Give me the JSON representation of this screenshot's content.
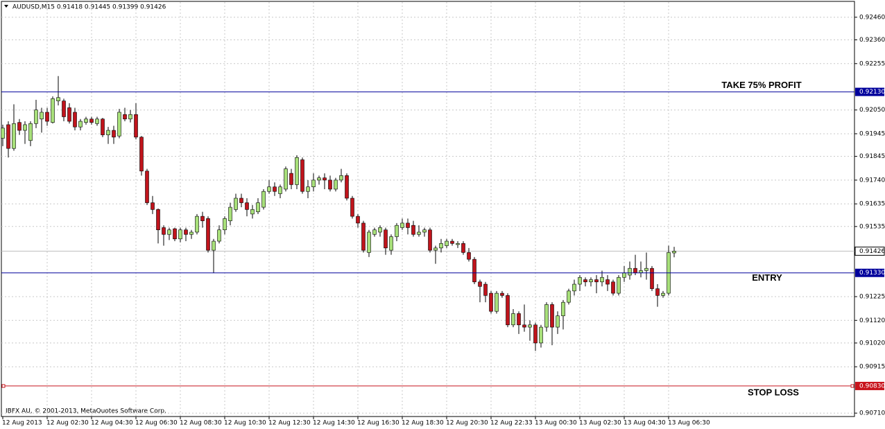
{
  "chart_data": {
    "type": "candlestick",
    "header": "AUDUSD,M15  0.91418 0.91445 0.91399 0.91426",
    "footer": "IBFX AU, © 2001-2013, MetaQuotes Software Corp.",
    "up_color": "#a8e07a",
    "down_color": "#c0141c",
    "grid": true,
    "ylim": [
      0.90695,
      0.92527
    ],
    "yticks": [
      {
        "value": 0.9246,
        "label": "0.92460"
      },
      {
        "value": 0.9236,
        "label": "0.92360"
      },
      0.92255,
      {
        "value": 0.9205,
        "label": "0.92050"
      },
      0.91945,
      0.91845,
      {
        "value": 0.9174,
        "label": "0.91740"
      },
      0.91635,
      0.91535,
      0.91225,
      {
        "value": 0.9112,
        "label": "0.91120"
      },
      {
        "value": 0.9102,
        "label": "0.91020"
      },
      0.90915,
      {
        "value": 0.9071,
        "label": "0.90710"
      }
    ],
    "levels": [
      {
        "value": 0.9213,
        "label": "0.92130",
        "name": "TAKE 75% PROFIT",
        "color": "#00009c"
      },
      {
        "value": 0.9133,
        "label": "0.91330",
        "name": "ENTRY",
        "color": "#00009c"
      },
      {
        "value": 0.9083,
        "label": "0.90830",
        "name": "STOP LOSS",
        "color": "#c8141c"
      }
    ],
    "bid": 0.91426,
    "categories": [
      "12 Aug 2013",
      null,
      null,
      null,
      null,
      null,
      null,
      null,
      "12 Aug 02:30",
      null,
      null,
      null,
      null,
      null,
      null,
      null,
      "12 Aug 04:30",
      null,
      null,
      null,
      null,
      null,
      null,
      null,
      "12 Aug 06:30",
      null,
      null,
      null,
      null,
      null,
      null,
      null,
      "12 Aug 08:30",
      null,
      null,
      null,
      null,
      null,
      null,
      null,
      "12 Aug 10:30",
      null,
      null,
      null,
      null,
      null,
      null,
      null,
      "12 Aug 12:30",
      null,
      null,
      null,
      null,
      null,
      null,
      null,
      "12 Aug 14:30",
      null,
      null,
      null,
      null,
      null,
      null,
      null,
      "12 Aug 16:30",
      null,
      null,
      null,
      null,
      null,
      null,
      null,
      "12 Aug 18:30",
      null,
      null,
      null,
      null,
      null,
      null,
      null,
      "12 Aug 20:30",
      null,
      null,
      null,
      null,
      null,
      null,
      null,
      "12 Aug 22:33",
      null,
      null,
      null,
      null,
      null,
      null,
      null,
      "13 Aug 00:30",
      null,
      null,
      null,
      null,
      null,
      null,
      null,
      "13 Aug 02:30",
      null,
      null,
      null,
      null,
      null,
      null,
      null,
      "13 Aug 04:30",
      null,
      null,
      null,
      null,
      null,
      null,
      null,
      "13 Aug 06:30",
      null
    ],
    "candles": [
      {
        "open": 0.91925,
        "high": 0.91985,
        "low": 0.9189,
        "close": 0.9197
      },
      {
        "open": 0.91985,
        "high": 0.92,
        "low": 0.9184,
        "close": 0.9188
      },
      {
        "open": 0.9188,
        "high": 0.92075,
        "low": 0.9187,
        "close": 0.9199
      },
      {
        "open": 0.91995,
        "high": 0.9201,
        "low": 0.9194,
        "close": 0.9196
      },
      {
        "open": 0.9196,
        "high": 0.92,
        "low": 0.919,
        "close": 0.91985
      },
      {
        "open": 0.91915,
        "high": 0.92,
        "low": 0.9189,
        "close": 0.9199
      },
      {
        "open": 0.9199,
        "high": 0.92095,
        "low": 0.9197,
        "close": 0.9205
      },
      {
        "open": 0.9201,
        "high": 0.9206,
        "low": 0.9195,
        "close": 0.9204
      },
      {
        "open": 0.9204,
        "high": 0.9206,
        "low": 0.9198,
        "close": 0.92
      },
      {
        "open": 0.91995,
        "high": 0.9211,
        "low": 0.9199,
        "close": 0.921
      },
      {
        "open": 0.9209,
        "high": 0.922,
        "low": 0.9207,
        "close": 0.92105
      },
      {
        "open": 0.9209,
        "high": 0.921,
        "low": 0.92,
        "close": 0.9202
      },
      {
        "open": 0.9206,
        "high": 0.9208,
        "low": 0.9199,
        "close": 0.92
      },
      {
        "open": 0.9204,
        "high": 0.9206,
        "low": 0.9196,
        "close": 0.91975
      },
      {
        "open": 0.91975,
        "high": 0.9201,
        "low": 0.9196,
        "close": 0.92
      },
      {
        "open": 0.91995,
        "high": 0.9202,
        "low": 0.91985,
        "close": 0.9201
      },
      {
        "open": 0.9201,
        "high": 0.9202,
        "low": 0.91985,
        "close": 0.91995
      },
      {
        "open": 0.9199,
        "high": 0.9202,
        "low": 0.9198,
        "close": 0.9201
      },
      {
        "open": 0.9201,
        "high": 0.92015,
        "low": 0.9193,
        "close": 0.9194
      },
      {
        "open": 0.9194,
        "high": 0.91975,
        "low": 0.919,
        "close": 0.9196
      },
      {
        "open": 0.9196,
        "high": 0.9198,
        "low": 0.919,
        "close": 0.9193
      },
      {
        "open": 0.91935,
        "high": 0.92055,
        "low": 0.91925,
        "close": 0.9204
      },
      {
        "open": 0.9203,
        "high": 0.9206,
        "low": 0.92,
        "close": 0.9201
      },
      {
        "open": 0.9201,
        "high": 0.9205,
        "low": 0.91995,
        "close": 0.9203
      },
      {
        "open": 0.9203,
        "high": 0.9208,
        "low": 0.9192,
        "close": 0.9193
      },
      {
        "open": 0.9193,
        "high": 0.91935,
        "low": 0.9176,
        "close": 0.9178
      },
      {
        "open": 0.9178,
        "high": 0.9179,
        "low": 0.9163,
        "close": 0.9164
      },
      {
        "open": 0.9164,
        "high": 0.9167,
        "low": 0.9159,
        "close": 0.9161
      },
      {
        "open": 0.9161,
        "high": 0.91615,
        "low": 0.9146,
        "close": 0.9152
      },
      {
        "open": 0.9153,
        "high": 0.9154,
        "low": 0.9145,
        "close": 0.915
      },
      {
        "open": 0.915,
        "high": 0.9153,
        "low": 0.91475,
        "close": 0.9152
      },
      {
        "open": 0.91525,
        "high": 0.9153,
        "low": 0.9147,
        "close": 0.9148
      },
      {
        "open": 0.9148,
        "high": 0.9153,
        "low": 0.91465,
        "close": 0.9152
      },
      {
        "open": 0.9152,
        "high": 0.9153,
        "low": 0.9147,
        "close": 0.915
      },
      {
        "open": 0.915,
        "high": 0.9152,
        "low": 0.9148,
        "close": 0.9151
      },
      {
        "open": 0.9151,
        "high": 0.9159,
        "low": 0.915,
        "close": 0.9158
      },
      {
        "open": 0.9158,
        "high": 0.916,
        "low": 0.9153,
        "close": 0.9156
      },
      {
        "open": 0.9157,
        "high": 0.9158,
        "low": 0.9142,
        "close": 0.9143
      },
      {
        "open": 0.9143,
        "high": 0.9148,
        "low": 0.9133,
        "close": 0.9147
      },
      {
        "open": 0.9147,
        "high": 0.9154,
        "low": 0.9146,
        "close": 0.9152
      },
      {
        "open": 0.9152,
        "high": 0.9158,
        "low": 0.915,
        "close": 0.9157
      },
      {
        "open": 0.9156,
        "high": 0.9164,
        "low": 0.9154,
        "close": 0.9162
      },
      {
        "open": 0.9161,
        "high": 0.9168,
        "low": 0.916,
        "close": 0.9166
      },
      {
        "open": 0.9166,
        "high": 0.9168,
        "low": 0.9162,
        "close": 0.9164
      },
      {
        "open": 0.9164,
        "high": 0.9166,
        "low": 0.9158,
        "close": 0.9161
      },
      {
        "open": 0.9159,
        "high": 0.9163,
        "low": 0.9157,
        "close": 0.9161
      },
      {
        "open": 0.916,
        "high": 0.9166,
        "low": 0.9159,
        "close": 0.9164
      },
      {
        "open": 0.9162,
        "high": 0.917,
        "low": 0.9161,
        "close": 0.9169
      },
      {
        "open": 0.9169,
        "high": 0.9174,
        "low": 0.9168,
        "close": 0.9171
      },
      {
        "open": 0.9171,
        "high": 0.9173,
        "low": 0.9167,
        "close": 0.9169
      },
      {
        "open": 0.9168,
        "high": 0.9172,
        "low": 0.9166,
        "close": 0.9171
      },
      {
        "open": 0.917,
        "high": 0.918,
        "low": 0.9169,
        "close": 0.9179
      },
      {
        "open": 0.9177,
        "high": 0.9179,
        "low": 0.917,
        "close": 0.9172
      },
      {
        "open": 0.9172,
        "high": 0.9185,
        "low": 0.917,
        "close": 0.9184
      },
      {
        "open": 0.9183,
        "high": 0.9184,
        "low": 0.9168,
        "close": 0.9169
      },
      {
        "open": 0.9169,
        "high": 0.9174,
        "low": 0.9166,
        "close": 0.9171
      },
      {
        "open": 0.9171,
        "high": 0.9177,
        "low": 0.9169,
        "close": 0.9174
      },
      {
        "open": 0.9174,
        "high": 0.9176,
        "low": 0.9172,
        "close": 0.9175
      },
      {
        "open": 0.9175,
        "high": 0.9177,
        "low": 0.917,
        "close": 0.9174
      },
      {
        "open": 0.9174,
        "high": 0.9176,
        "low": 0.9169,
        "close": 0.917
      },
      {
        "open": 0.917,
        "high": 0.9175,
        "low": 0.9169,
        "close": 0.9174
      },
      {
        "open": 0.9174,
        "high": 0.9179,
        "low": 0.9173,
        "close": 0.9176
      },
      {
        "open": 0.9176,
        "high": 0.9177,
        "low": 0.9165,
        "close": 0.9166
      },
      {
        "open": 0.9166,
        "high": 0.9167,
        "low": 0.9157,
        "close": 0.9158
      },
      {
        "open": 0.9158,
        "high": 0.9159,
        "low": 0.9153,
        "close": 0.9155
      },
      {
        "open": 0.9155,
        "high": 0.9156,
        "low": 0.9142,
        "close": 0.9143
      },
      {
        "open": 0.9142,
        "high": 0.9152,
        "low": 0.914,
        "close": 0.9151
      },
      {
        "open": 0.915,
        "high": 0.9153,
        "low": 0.9149,
        "close": 0.9152
      },
      {
        "open": 0.9151,
        "high": 0.9154,
        "low": 0.9149,
        "close": 0.9153
      },
      {
        "open": 0.9152,
        "high": 0.9153,
        "low": 0.9141,
        "close": 0.9144
      },
      {
        "open": 0.9143,
        "high": 0.915,
        "low": 0.9141,
        "close": 0.9149
      },
      {
        "open": 0.9149,
        "high": 0.9155,
        "low": 0.9147,
        "close": 0.9154
      },
      {
        "open": 0.9153,
        "high": 0.9157,
        "low": 0.9152,
        "close": 0.9155
      },
      {
        "open": 0.9155,
        "high": 0.9157,
        "low": 0.915,
        "close": 0.9153
      },
      {
        "open": 0.9154,
        "high": 0.9156,
        "low": 0.9149,
        "close": 0.915
      },
      {
        "open": 0.915,
        "high": 0.9154,
        "low": 0.9149,
        "close": 0.9151
      },
      {
        "open": 0.9151,
        "high": 0.9153,
        "low": 0.9149,
        "close": 0.9152
      },
      {
        "open": 0.9152,
        "high": 0.9153,
        "low": 0.9142,
        "close": 0.9143
      },
      {
        "open": 0.9143,
        "high": 0.9145,
        "low": 0.9137,
        "close": 0.9144
      },
      {
        "open": 0.9144,
        "high": 0.9148,
        "low": 0.9142,
        "close": 0.9146
      },
      {
        "open": 0.9145,
        "high": 0.9148,
        "low": 0.9144,
        "close": 0.9147
      },
      {
        "open": 0.9147,
        "high": 0.9148,
        "low": 0.9145,
        "close": 0.9146
      },
      {
        "open": 0.91455,
        "high": 0.9147,
        "low": 0.9144,
        "close": 0.9146
      },
      {
        "open": 0.9146,
        "high": 0.9147,
        "low": 0.9141,
        "close": 0.9142
      },
      {
        "open": 0.9142,
        "high": 0.9144,
        "low": 0.9138,
        "close": 0.9139
      },
      {
        "open": 0.9139,
        "high": 0.914,
        "low": 0.9128,
        "close": 0.9129
      },
      {
        "open": 0.9129,
        "high": 0.913,
        "low": 0.912,
        "close": 0.9127
      },
      {
        "open": 0.9128,
        "high": 0.9129,
        "low": 0.912,
        "close": 0.9123
      },
      {
        "open": 0.9124,
        "high": 0.9125,
        "low": 0.9115,
        "close": 0.9116
      },
      {
        "open": 0.9116,
        "high": 0.9125,
        "low": 0.9115,
        "close": 0.9124
      },
      {
        "open": 0.9124,
        "high": 0.9125,
        "low": 0.9122,
        "close": 0.9123
      },
      {
        "open": 0.9123,
        "high": 0.9124,
        "low": 0.9109,
        "close": 0.911
      },
      {
        "open": 0.911,
        "high": 0.9117,
        "low": 0.9109,
        "close": 0.9115
      },
      {
        "open": 0.9115,
        "high": 0.9116,
        "low": 0.9106,
        "close": 0.911
      },
      {
        "open": 0.911,
        "high": 0.9119,
        "low": 0.9107,
        "close": 0.9109
      },
      {
        "open": 0.9109,
        "high": 0.9112,
        "low": 0.9103,
        "close": 0.911
      },
      {
        "open": 0.911,
        "high": 0.9111,
        "low": 0.90985,
        "close": 0.9102
      },
      {
        "open": 0.9102,
        "high": 0.911,
        "low": 0.91,
        "close": 0.9109
      },
      {
        "open": 0.9109,
        "high": 0.912,
        "low": 0.9107,
        "close": 0.9119
      },
      {
        "open": 0.9119,
        "high": 0.912,
        "low": 0.9101,
        "close": 0.9109
      },
      {
        "open": 0.9109,
        "high": 0.9116,
        "low": 0.9106,
        "close": 0.9114
      },
      {
        "open": 0.9114,
        "high": 0.9121,
        "low": 0.9108,
        "close": 0.912
      },
      {
        "open": 0.912,
        "high": 0.9126,
        "low": 0.9119,
        "close": 0.9125
      },
      {
        "open": 0.9125,
        "high": 0.913,
        "low": 0.9123,
        "close": 0.9128
      },
      {
        "open": 0.9128,
        "high": 0.9132,
        "low": 0.9125,
        "close": 0.9131
      },
      {
        "open": 0.913,
        "high": 0.9131,
        "low": 0.9127,
        "close": 0.9129
      },
      {
        "open": 0.9129,
        "high": 0.9131,
        "low": 0.9127,
        "close": 0.913
      },
      {
        "open": 0.913,
        "high": 0.9132,
        "low": 0.9124,
        "close": 0.9129
      },
      {
        "open": 0.9129,
        "high": 0.9134,
        "low": 0.9127,
        "close": 0.9131
      },
      {
        "open": 0.913,
        "high": 0.9132,
        "low": 0.9125,
        "close": 0.9128
      },
      {
        "open": 0.9129,
        "high": 0.913,
        "low": 0.9123,
        "close": 0.9124
      },
      {
        "open": 0.9124,
        "high": 0.9132,
        "low": 0.9123,
        "close": 0.9131
      },
      {
        "open": 0.9131,
        "high": 0.9136,
        "low": 0.9129,
        "close": 0.9133
      },
      {
        "open": 0.9132,
        "high": 0.9138,
        "low": 0.913,
        "close": 0.9135
      },
      {
        "open": 0.9135,
        "high": 0.9141,
        "low": 0.9132,
        "close": 0.9133
      },
      {
        "open": 0.9133,
        "high": 0.9138,
        "low": 0.9131,
        "close": 0.9134
      },
      {
        "open": 0.9134,
        "high": 0.9142,
        "low": 0.913,
        "close": 0.9135
      },
      {
        "open": 0.9135,
        "high": 0.9136,
        "low": 0.9125,
        "close": 0.9126
      },
      {
        "open": 0.9126,
        "high": 0.9128,
        "low": 0.9118,
        "close": 0.9123
      },
      {
        "open": 0.9123,
        "high": 0.9125,
        "low": 0.9122,
        "close": 0.9124
      },
      {
        "open": 0.9124,
        "high": 0.9145,
        "low": 0.9123,
        "close": 0.9142
      },
      {
        "open": 0.91418,
        "high": 0.91445,
        "low": 0.91399,
        "close": 0.91426
      }
    ]
  }
}
